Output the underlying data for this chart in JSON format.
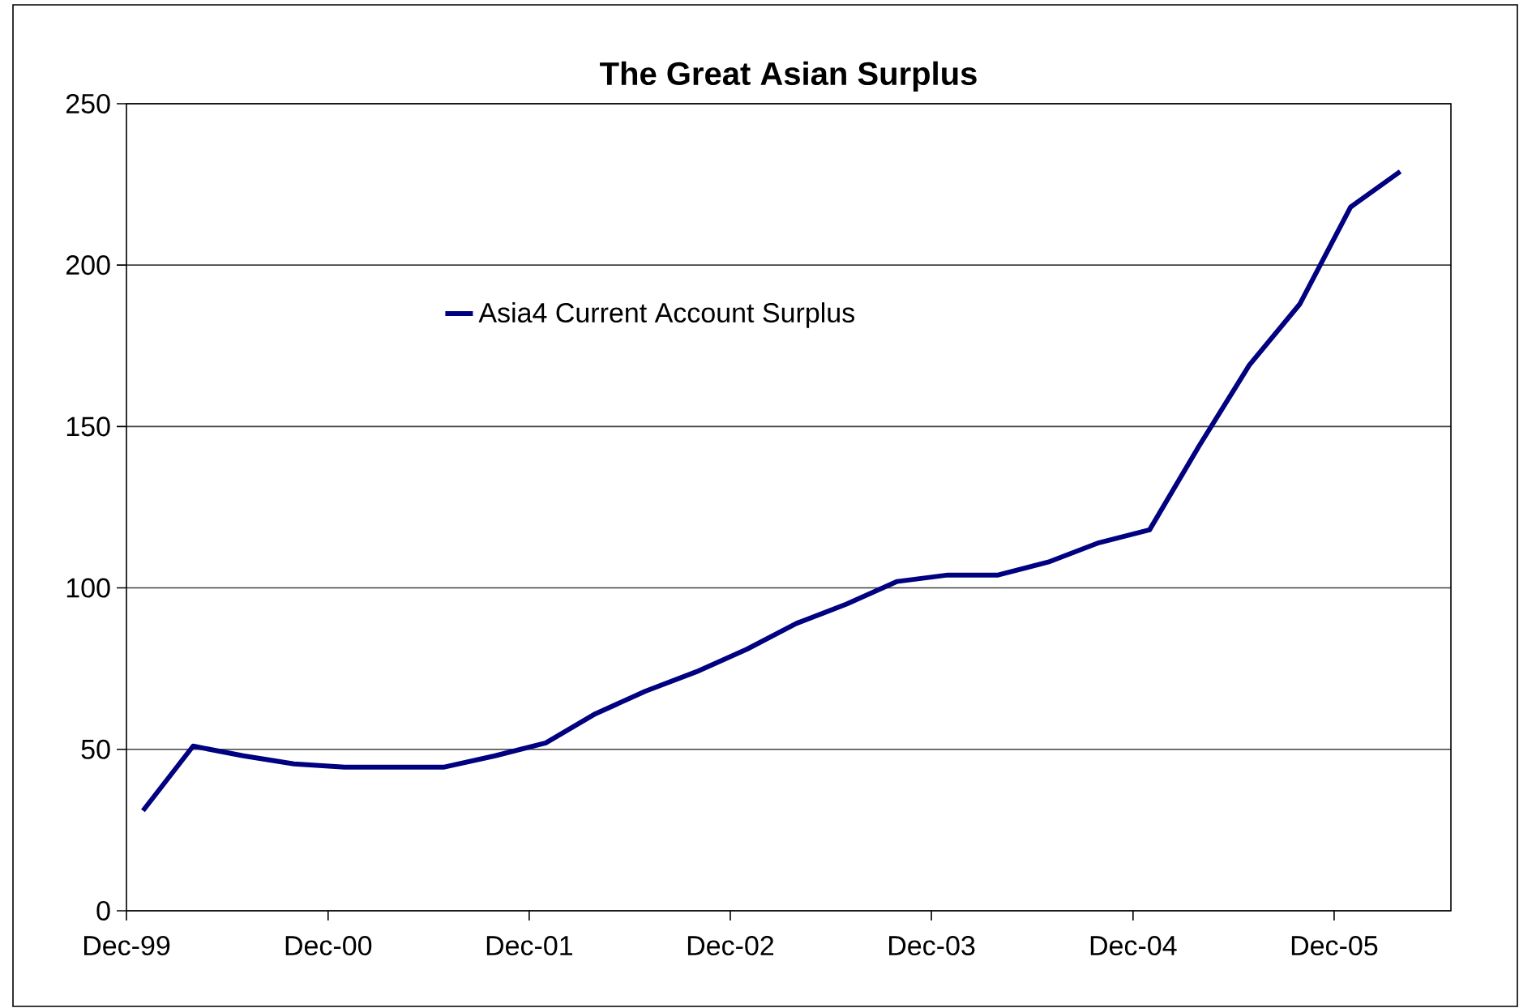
{
  "chart_data": {
    "type": "line",
    "title": "The Great Asian Surplus",
    "x": [
      "1999-12-31",
      "2000-03-31",
      "2000-06-30",
      "2000-09-30",
      "2000-12-31",
      "2001-03-31",
      "2001-06-30",
      "2001-09-30",
      "2001-12-31",
      "2002-03-31",
      "2002-06-30",
      "2002-09-30",
      "2002-12-31",
      "2003-03-31",
      "2003-06-30",
      "2003-09-30",
      "2003-12-31",
      "2004-03-31",
      "2004-06-30",
      "2004-09-30",
      "2004-12-31",
      "2005-03-31",
      "2005-06-30",
      "2005-09-30",
      "2005-12-31",
      "2006-03-31"
    ],
    "series": [
      {
        "name": "Asia4 Current Account Surplus",
        "color": "#000080",
        "values": [
          31,
          51,
          48,
          45.5,
          44.5,
          44.5,
          44.5,
          48,
          52,
          61,
          68,
          74,
          81,
          89,
          95,
          102,
          104,
          104,
          108,
          114,
          118,
          144,
          169,
          188,
          218,
          229
        ]
      }
    ],
    "xlim": [
      "1999-12-01",
      "2006-07-01"
    ],
    "xticks": [
      {
        "value": "1999-12-01",
        "label": "Dec-99"
      },
      {
        "value": "2000-12-01",
        "label": "Dec-00"
      },
      {
        "value": "2001-12-01",
        "label": "Dec-01"
      },
      {
        "value": "2002-12-01",
        "label": "Dec-02"
      },
      {
        "value": "2003-12-01",
        "label": "Dec-03"
      },
      {
        "value": "2004-12-01",
        "label": "Dec-04"
      },
      {
        "value": "2005-12-01",
        "label": "Dec-05"
      }
    ],
    "ylim": [
      0,
      250
    ],
    "yticks": [
      0,
      50,
      100,
      150,
      200,
      250
    ],
    "grid": "y",
    "legend": "top",
    "marker": "none",
    "line_style": "solid"
  }
}
